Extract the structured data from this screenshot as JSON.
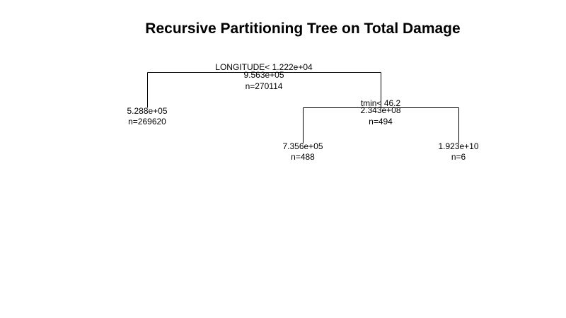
{
  "title": "Recursive Partitioning Tree on Total Damage",
  "nodes": {
    "root": {
      "split": "LONGITUDE< 1.222e+04",
      "value": "9.563e+05",
      "n": "n=270114"
    },
    "left_leaf": {
      "value": "5.288e+05",
      "n": "n=269620"
    },
    "right_node": {
      "split": "tmin< 46.2",
      "value": "2.343e+08",
      "n": "n=494"
    },
    "right_left_leaf": {
      "value": "7.356e+05",
      "n": "n=488"
    },
    "right_right_leaf": {
      "value": "1.923e+10",
      "n": "n=6"
    }
  }
}
